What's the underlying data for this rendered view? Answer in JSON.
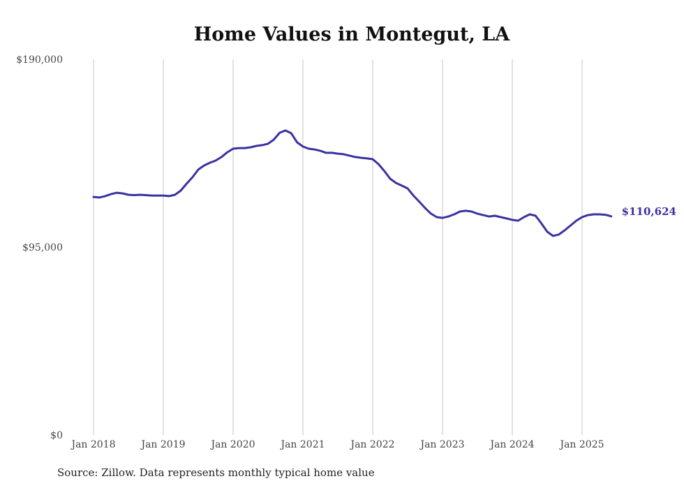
{
  "chart_data": {
    "type": "line",
    "title": "Home Values in Montegut, LA",
    "xlabel": "",
    "ylabel": "",
    "ylim": [
      0,
      190000
    ],
    "y_ticks": [
      {
        "value": 0,
        "label": "$0"
      },
      {
        "value": 95000,
        "label": "$95,000"
      },
      {
        "value": 190000,
        "label": "$190,000"
      }
    ],
    "x_ticks": [
      "Jan 2018",
      "Jan 2019",
      "Jan 2020",
      "Jan 2021",
      "Jan 2022",
      "Jan 2023",
      "Jan 2024",
      "Jan 2025"
    ],
    "grid": "vertical",
    "x_start": "2018-01",
    "x_step": "monthly",
    "series": [
      {
        "name": "Typical home value",
        "color": "#3a32a0",
        "values": [
          120400,
          120100,
          120800,
          121800,
          122500,
          122200,
          121500,
          121300,
          121500,
          121300,
          121100,
          121100,
          121100,
          120800,
          121500,
          123600,
          127100,
          130300,
          134200,
          136300,
          137700,
          138800,
          140600,
          143000,
          144800,
          145100,
          145100,
          145500,
          146200,
          146600,
          147300,
          149400,
          152900,
          154000,
          152600,
          148000,
          145900,
          144800,
          144400,
          143700,
          142700,
          142700,
          142300,
          142000,
          141300,
          140600,
          140200,
          139900,
          139500,
          137000,
          133500,
          129600,
          127500,
          126100,
          124700,
          121100,
          118000,
          114800,
          112000,
          110200,
          109800,
          110500,
          111600,
          113000,
          113400,
          113000,
          111900,
          111200,
          110500,
          110900,
          110200,
          109500,
          108800,
          108400,
          110200,
          111600,
          110900,
          107000,
          102800,
          100700,
          101400,
          103500,
          105900,
          108400,
          110200,
          111200,
          111600,
          111600,
          111400,
          110624
        ]
      }
    ],
    "end_label": "$110,624"
  },
  "source": "Source: Zillow. Data represents monthly typical home value"
}
